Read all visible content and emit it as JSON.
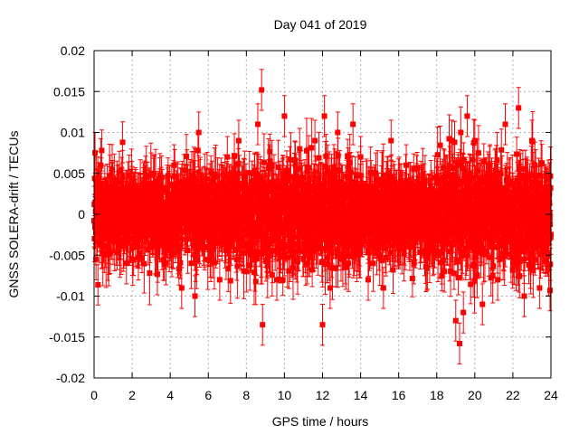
{
  "chart_data": {
    "type": "scatter",
    "title": "Day 041 of 2019",
    "xlabel": "GPS time / hours",
    "ylabel": "GNSS SOLERA-drift / TECUs",
    "xlim": [
      0,
      24
    ],
    "ylim": [
      -0.02,
      0.02
    ],
    "x_ticks": [
      "0",
      "2",
      "4",
      "6",
      "8",
      "10",
      "12",
      "14",
      "16",
      "18",
      "20",
      "22",
      "24"
    ],
    "y_ticks": [
      "0.02",
      "0.015",
      "0.01",
      "0.005",
      "0",
      "-0.005",
      "-0.01",
      "-0.015",
      "-0.02"
    ],
    "grid": true,
    "series_color": "#ff0000",
    "marker": "square-with-errorbars",
    "series": [
      {
        "x": [
          0.05,
          0.1,
          0.15,
          0.2,
          0.3,
          0.4,
          0.6,
          0.8,
          1.0,
          1.2,
          1.4,
          1.5,
          1.7,
          2.0,
          2.3,
          2.6,
          3.0,
          3.4,
          3.8,
          4.2,
          4.6,
          5.0,
          5.3,
          5.5,
          5.8,
          6.2,
          6.6,
          7.0,
          7.3,
          7.6,
          8.0,
          8.3,
          8.6,
          8.8,
          8.85,
          9.2,
          9.6,
          10.0,
          10.4,
          10.8,
          11.2,
          11.6,
          12.0,
          12.1,
          12.4,
          12.8,
          13.2,
          13.6,
          14.0,
          14.4,
          14.8,
          15.2,
          15.6,
          16.0,
          16.4,
          16.8,
          17.2,
          17.6,
          18.0,
          18.4,
          18.8,
          19.0,
          19.2,
          19.4,
          19.6,
          20.0,
          20.4,
          20.8,
          21.2,
          21.6,
          22.0,
          22.3,
          22.6,
          23.0,
          23.4,
          23.8,
          23.95
        ],
        "y": [
          0.0075,
          -0.0055,
          0.001,
          0.003,
          -0.002,
          0.0078,
          -0.004,
          0.002,
          -0.003,
          0.004,
          -0.002,
          0.0088,
          -0.006,
          0.003,
          -0.004,
          0.002,
          0.005,
          -0.003,
          0.001,
          0.006,
          -0.009,
          0.003,
          -0.01,
          0.01,
          -0.004,
          0.004,
          -0.008,
          0.007,
          -0.003,
          0.009,
          -0.007,
          0.004,
          0.011,
          0.0152,
          -0.0135,
          0.006,
          -0.008,
          0.012,
          -0.005,
          0.008,
          -0.006,
          0.009,
          -0.0135,
          0.012,
          -0.009,
          0.01,
          -0.006,
          0.011,
          0.007,
          -0.008,
          0.005,
          -0.009,
          0.009,
          -0.004,
          0.006,
          -0.006,
          0.003,
          -0.003,
          0.004,
          -0.007,
          0.009,
          -0.013,
          -0.0158,
          -0.012,
          0.012,
          0.009,
          -0.011,
          0.006,
          -0.008,
          0.011,
          -0.006,
          0.013,
          -0.01,
          0.009,
          -0.009,
          0.003,
          -0.0093
        ]
      }
    ]
  }
}
